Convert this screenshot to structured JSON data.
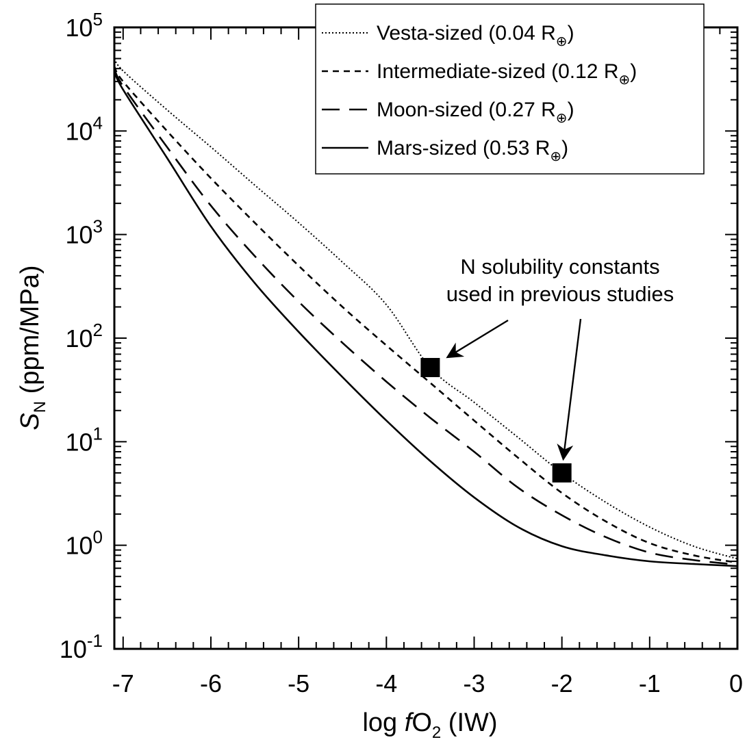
{
  "chart_data": {
    "type": "line",
    "xlabel": {
      "prefix": "log ",
      "italic": "f",
      "main": "O",
      "sub": "2",
      "suffix": " (IW)"
    },
    "ylabel": {
      "italic": "S",
      "sub": "N",
      "suffix": " (ppm/MPa)"
    },
    "xlim": [
      -7.1,
      0
    ],
    "ylim": [
      -1,
      5
    ],
    "y_scale": "log",
    "x_ticks": [
      -7,
      -6,
      -5,
      -4,
      -3,
      -2,
      -1,
      0
    ],
    "x_tick_labels": [
      "-7",
      "-6",
      "-5",
      "-4",
      "-3",
      "-2",
      "-1",
      "0"
    ],
    "y_ticks": [
      {
        "base": "10",
        "exp": "-1"
      },
      {
        "base": "10",
        "exp": "0"
      },
      {
        "base": "10",
        "exp": "1"
      },
      {
        "base": "10",
        "exp": "2"
      },
      {
        "base": "10",
        "exp": "3"
      },
      {
        "base": "10",
        "exp": "4"
      },
      {
        "base": "10",
        "exp": "5"
      }
    ],
    "grid": false,
    "legend_position": "top-right",
    "series": [
      {
        "name": "Vesta-sized (0.04 R",
        "name_sub": "⊕",
        "name_suffix": ")",
        "dash": "dotted",
        "x": [
          -7.1,
          -7,
          -6.5,
          -6,
          -5.5,
          -5,
          -4.5,
          -4,
          -3.5,
          -3,
          -2.5,
          -2,
          -1.5,
          -1,
          -0.5,
          0
        ],
        "y": [
          50000,
          38000,
          16000,
          7000,
          3000,
          1300,
          540,
          210,
          52,
          24,
          11,
          5,
          2.6,
          1.5,
          0.98,
          0.74
        ]
      },
      {
        "name": "Intermediate-sized (0.12 R",
        "name_sub": "⊕",
        "name_suffix": ")",
        "dash": "short-dashed",
        "x": [
          -7.1,
          -7,
          -6.5,
          -6,
          -5.5,
          -5,
          -4.5,
          -4,
          -3.5,
          -3,
          -2.5,
          -2,
          -1.5,
          -1,
          -0.5,
          0
        ],
        "y": [
          42000,
          30000,
          10000,
          3500,
          1300,
          500,
          200,
          85,
          37,
          16,
          7,
          3.2,
          1.7,
          1.05,
          0.8,
          0.68
        ]
      },
      {
        "name": "Moon-sized (0.27 R",
        "name_sub": "⊕",
        "name_suffix": ")",
        "dash": "long-dashed",
        "x": [
          -7.1,
          -7,
          -6.5,
          -6,
          -5.5,
          -5,
          -4.5,
          -4,
          -3.5,
          -3,
          -2.5,
          -2,
          -1.5,
          -1,
          -0.5,
          0
        ],
        "y": [
          40000,
          27000,
          7000,
          1900,
          620,
          225,
          90,
          38,
          17,
          8,
          3.6,
          1.95,
          1.2,
          0.85,
          0.72,
          0.65
        ]
      },
      {
        "name": "Mars-sized (0.53 R",
        "name_sub": "⊕",
        "name_suffix": ")",
        "dash": "solid",
        "x": [
          -7.1,
          -7,
          -6.5,
          -6,
          -5.5,
          -5,
          -4.5,
          -4,
          -3.5,
          -3,
          -2.5,
          -2,
          -1.5,
          -1,
          -0.5,
          0
        ],
        "y": [
          38000,
          25000,
          5500,
          1200,
          340,
          115,
          42,
          16,
          6.5,
          2.9,
          1.5,
          0.98,
          0.8,
          0.7,
          0.66,
          0.63
        ]
      }
    ],
    "markers": [
      {
        "x": -3.5,
        "y": 52
      },
      {
        "x": -2,
        "y": 5
      }
    ],
    "annotation": {
      "lines": [
        "N solubility constants",
        "used in previous studies"
      ]
    }
  }
}
